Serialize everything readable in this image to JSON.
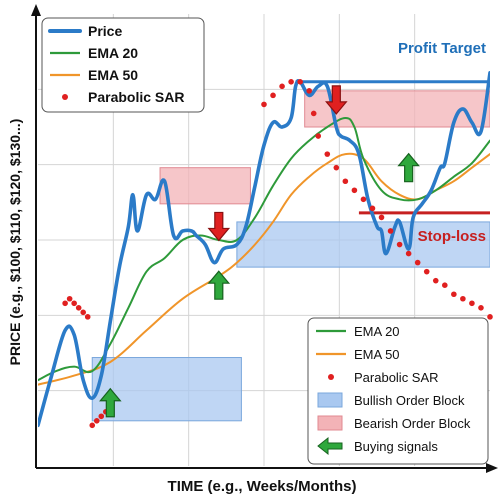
{
  "chart_data": {
    "type": "line",
    "xlabel": "TIME (e.g., Weeks/Months)",
    "ylabel": "PRICE (e.g., $100, $110, $120, $130...)",
    "xlim": [
      0,
      100
    ],
    "ylim": [
      0,
      100
    ],
    "grid": true,
    "series": [
      {
        "name": "Price",
        "color": "#2b7bc8",
        "points": [
          [
            0,
            9
          ],
          [
            3,
            20
          ],
          [
            6,
            30
          ],
          [
            8,
            29
          ],
          [
            10,
            19
          ],
          [
            12,
            15
          ],
          [
            14,
            20
          ],
          [
            16,
            32
          ],
          [
            18,
            44
          ],
          [
            20,
            53
          ],
          [
            21,
            60
          ],
          [
            22,
            52
          ],
          [
            24,
            60
          ],
          [
            26,
            59
          ],
          [
            28,
            63
          ],
          [
            30,
            51
          ],
          [
            32,
            52
          ],
          [
            34,
            52
          ],
          [
            35,
            51
          ],
          [
            37,
            49
          ],
          [
            39,
            45
          ],
          [
            41,
            48
          ],
          [
            44,
            49
          ],
          [
            46,
            53
          ],
          [
            48,
            62
          ],
          [
            50,
            71
          ],
          [
            52,
            76
          ],
          [
            54,
            75
          ],
          [
            56,
            77
          ],
          [
            57,
            84
          ],
          [
            58,
            85
          ],
          [
            60,
            82
          ],
          [
            62,
            84
          ],
          [
            64,
            84
          ],
          [
            66,
            75
          ],
          [
            67,
            73
          ],
          [
            69,
            72
          ],
          [
            71,
            69
          ],
          [
            73,
            59
          ],
          [
            75,
            53
          ],
          [
            76,
            52
          ],
          [
            77,
            47
          ],
          [
            79,
            53
          ],
          [
            80,
            54
          ],
          [
            82,
            48
          ],
          [
            83,
            55
          ],
          [
            85,
            58
          ],
          [
            87,
            61
          ],
          [
            89,
            66
          ],
          [
            90,
            67
          ],
          [
            92,
            76
          ],
          [
            94,
            79
          ],
          [
            96,
            76
          ],
          [
            98,
            74
          ],
          [
            100,
            87
          ]
        ]
      },
      {
        "name": "EMA 20",
        "color": "#2e9a3a",
        "points": [
          [
            0,
            19
          ],
          [
            4,
            21
          ],
          [
            8,
            22
          ],
          [
            12,
            21
          ],
          [
            16,
            27
          ],
          [
            20,
            35
          ],
          [
            24,
            43
          ],
          [
            28,
            46
          ],
          [
            32,
            50
          ],
          [
            36,
            51
          ],
          [
            40,
            50
          ],
          [
            44,
            50
          ],
          [
            48,
            55
          ],
          [
            52,
            62
          ],
          [
            56,
            68
          ],
          [
            60,
            72
          ],
          [
            64,
            75
          ],
          [
            68,
            77
          ],
          [
            70,
            75
          ],
          [
            72,
            68
          ],
          [
            76,
            61
          ],
          [
            80,
            59
          ],
          [
            84,
            59
          ],
          [
            88,
            61
          ],
          [
            92,
            64
          ],
          [
            96,
            67
          ],
          [
            100,
            72
          ]
        ]
      },
      {
        "name": "EMA 50",
        "color": "#f0952a",
        "points": [
          [
            0,
            18
          ],
          [
            8,
            20
          ],
          [
            16,
            23
          ],
          [
            24,
            30
          ],
          [
            32,
            37
          ],
          [
            40,
            42
          ],
          [
            44,
            45
          ],
          [
            48,
            49
          ],
          [
            52,
            54
          ],
          [
            56,
            60
          ],
          [
            60,
            64
          ],
          [
            64,
            67
          ],
          [
            68,
            69
          ],
          [
            72,
            68
          ],
          [
            76,
            63
          ],
          [
            80,
            60
          ],
          [
            84,
            59
          ],
          [
            88,
            61
          ],
          [
            92,
            63
          ],
          [
            96,
            66
          ],
          [
            100,
            69
          ]
        ]
      },
      {
        "name": "Parabolic SAR",
        "color": "#e02020",
        "marker": "dot",
        "points": [
          [
            6,
            36
          ],
          [
            7,
            37
          ],
          [
            8,
            36
          ],
          [
            9,
            35
          ],
          [
            10,
            34
          ],
          [
            11,
            33
          ],
          [
            12,
            9
          ],
          [
            13,
            10
          ],
          [
            14,
            11
          ],
          [
            15,
            12
          ],
          [
            50,
            80
          ],
          [
            52,
            82
          ],
          [
            54,
            84
          ],
          [
            56,
            85
          ],
          [
            58,
            85
          ],
          [
            60,
            83
          ],
          [
            61,
            78
          ],
          [
            62,
            73
          ],
          [
            64,
            69
          ],
          [
            66,
            66
          ],
          [
            68,
            63
          ],
          [
            70,
            61
          ],
          [
            72,
            59
          ],
          [
            74,
            57
          ],
          [
            76,
            55
          ],
          [
            78,
            52
          ],
          [
            80,
            49
          ],
          [
            82,
            47
          ],
          [
            84,
            45
          ],
          [
            86,
            43
          ],
          [
            88,
            41
          ],
          [
            90,
            40
          ],
          [
            92,
            38
          ],
          [
            94,
            37
          ],
          [
            96,
            36
          ],
          [
            98,
            35
          ],
          [
            100,
            33
          ]
        ]
      }
    ],
    "zones": [
      {
        "name": "Bullish Order Block",
        "color": "#a9c8f0",
        "x": [
          12,
          45
        ],
        "y": [
          10,
          24
        ]
      },
      {
        "name": "Bullish Order Block",
        "color": "#a9c8f0",
        "x": [
          44,
          100
        ],
        "y": [
          44,
          54
        ]
      },
      {
        "name": "Bearish Order Block",
        "color": "#f3b3b7",
        "x": [
          27,
          47
        ],
        "y": [
          58,
          66
        ]
      },
      {
        "name": "Bearish Order Block",
        "color": "#f3b3b7",
        "x": [
          59,
          100
        ],
        "y": [
          75,
          83
        ]
      }
    ],
    "lines": [
      {
        "name": "Profit Target",
        "color": "#2b7bc8",
        "y": 85,
        "x": [
          57,
          100
        ]
      },
      {
        "name": "Stop-loss",
        "color": "#c62020",
        "y": 56,
        "x": [
          71,
          100
        ]
      }
    ],
    "signals": [
      {
        "kind": "buy",
        "x": 16,
        "y": 14
      },
      {
        "kind": "buy",
        "x": 40,
        "y": 40
      },
      {
        "kind": "buy",
        "x": 82,
        "y": 66
      },
      {
        "kind": "sell",
        "x": 40,
        "y": 53
      },
      {
        "kind": "sell",
        "x": 66,
        "y": 81
      }
    ],
    "annotations": {
      "profit_target": "Profit Target",
      "stop_loss": "Stop-loss"
    },
    "legend_top": {
      "placement": "top-left",
      "items": [
        {
          "label": "Price",
          "color": "#2b7bc8",
          "style": "line-thick"
        },
        {
          "label": "EMA 20",
          "color": "#2e9a3a",
          "style": "line"
        },
        {
          "label": "EMA 50",
          "color": "#f0952a",
          "style": "line"
        },
        {
          "label": "Parabolic SAR",
          "color": "#e02020",
          "style": "dots"
        }
      ]
    },
    "legend_bottom": {
      "placement": "bottom-right",
      "items": [
        {
          "label": "EMA 20",
          "color": "#2e9a3a",
          "style": "line"
        },
        {
          "label": "EMA 50",
          "color": "#f0952a",
          "style": "line"
        },
        {
          "label": "Parabolic SAR",
          "color": "#e02020",
          "style": "dots"
        },
        {
          "label": "Bullish Order Block",
          "color": "#a9c8f0",
          "style": "box"
        },
        {
          "label": "Bearish Order Block",
          "color": "#f3b3b7",
          "style": "box"
        },
        {
          "label": "Buying signals",
          "color": "#2e9a3a",
          "style": "arrow"
        }
      ]
    }
  }
}
